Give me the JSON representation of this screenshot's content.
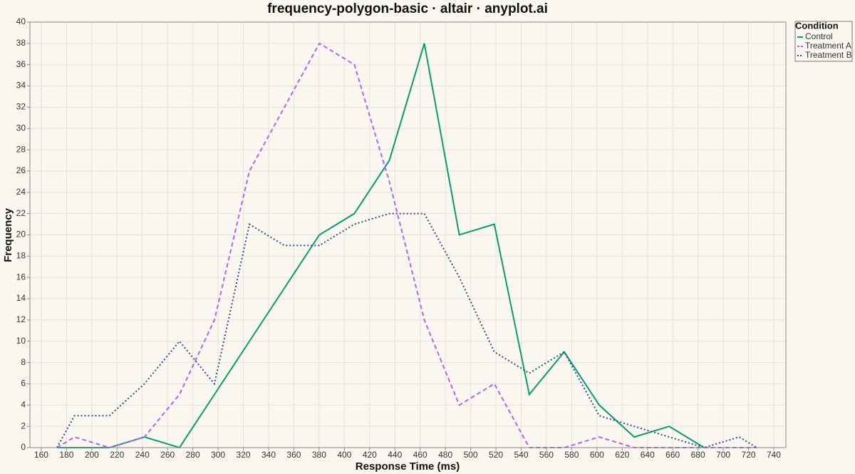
{
  "chart_data": {
    "type": "line",
    "title": "frequency-polygon-basic · altair · anyplot.ai",
    "x_label": "Response Time (ms)",
    "y_label": "Frequency",
    "x": [
      172.4,
      186.3,
      214.0,
      241.7,
      269.4,
      297.1,
      324.8,
      352.5,
      380.2,
      407.9,
      435.6,
      463.3,
      491.0,
      518.7,
      546.4,
      574.1,
      601.8,
      629.5,
      657.2,
      684.9,
      712.6,
      726.5
    ],
    "series": [
      {
        "name": "Control",
        "color": "#0b9a72",
        "dash": "solid",
        "values": [
          0,
          0,
          0,
          1,
          0,
          5,
          10,
          15,
          20,
          22,
          27,
          38,
          20,
          21,
          5,
          9,
          4,
          1,
          2,
          0,
          null,
          null
        ]
      },
      {
        "name": "Treatment A",
        "color": "#b462f0",
        "dash": "dashed",
        "values": [
          0,
          1,
          0,
          1,
          5,
          12,
          26,
          32,
          38,
          36,
          25,
          12,
          4,
          6,
          0,
          0,
          1,
          0,
          0,
          0,
          0,
          0
        ]
      },
      {
        "name": "Treatment B",
        "color": "#2d4e88",
        "dash": "dotted",
        "values": [
          0,
          3,
          3,
          6,
          10,
          6,
          21,
          19,
          19,
          21,
          22,
          22,
          16,
          9,
          7,
          9,
          3,
          2,
          1,
          0,
          1,
          0
        ]
      }
    ],
    "legend_title": "Condition",
    "legend_position": "right",
    "xlim": [
      151,
      749.6
    ],
    "ylim": [
      0,
      40
    ],
    "xticks": [
      160,
      180,
      200,
      220,
      240,
      260,
      280,
      300,
      320,
      340,
      360,
      380,
      400,
      420,
      440,
      460,
      480,
      500,
      520,
      540,
      560,
      580,
      600,
      620,
      640,
      660,
      680,
      700,
      720,
      740
    ],
    "yticks": [
      0,
      2,
      4,
      6,
      8,
      10,
      12,
      14,
      16,
      18,
      20,
      22,
      24,
      26,
      28,
      30,
      32,
      34,
      36,
      38,
      40
    ],
    "grid": true
  }
}
